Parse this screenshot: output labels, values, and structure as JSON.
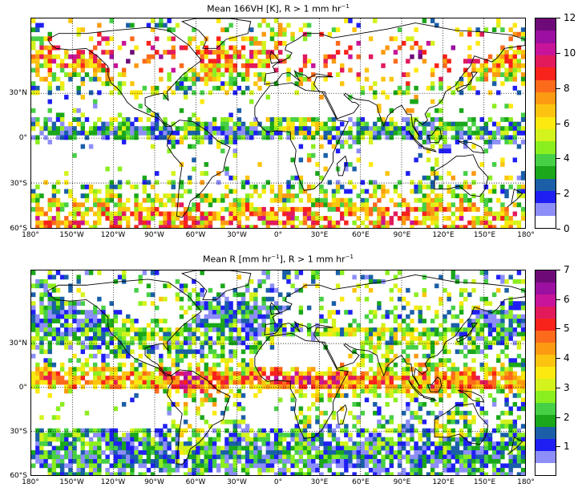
{
  "panels": [
    {
      "id": "top",
      "title": "Mean 166VH [K], R > 1 mm hr",
      "title_sup": "−1",
      "colorbar": {
        "min": 0,
        "max": 12,
        "ticks": [
          "0",
          "2",
          "4",
          "6",
          "8",
          "10",
          "12"
        ],
        "colors": [
          "#ffffff",
          "#8e8ef8",
          "#1f1ff4",
          "#1a5fa8",
          "#1aa71a",
          "#46d046",
          "#8bee1f",
          "#d4f21c",
          "#fbe90f",
          "#fcc410",
          "#fc9a12",
          "#fc6a1b",
          "#f8231a",
          "#e21a5b",
          "#c8149a",
          "#9b10a0",
          "#6e0a78"
        ]
      }
    },
    {
      "id": "bottom",
      "title": "Mean R [mm hr",
      "title_mid": "], R > 1 mm hr",
      "title_sup": "−1",
      "colorbar": {
        "min": 0,
        "max": 7,
        "ticks": [
          "1",
          "2",
          "3",
          "4",
          "5",
          "6",
          "7"
        ],
        "colors": [
          "#ffffff",
          "#8e8ef8",
          "#1f1ff4",
          "#1a5fa8",
          "#1aa71a",
          "#46d046",
          "#8bee1f",
          "#d4f21c",
          "#fbe90f",
          "#fcc410",
          "#fc9a12",
          "#fc6a1b",
          "#f8231a",
          "#e21a5b",
          "#c8149a",
          "#9b10a0",
          "#6e0a78"
        ]
      }
    }
  ],
  "axes": {
    "lat_labels": [
      "30°N",
      "0°",
      "30°S",
      "60°S"
    ],
    "lon_labels": [
      "180°",
      "150°W",
      "120°W",
      "90°W",
      "60°W",
      "30°W",
      "0°",
      "30°E",
      "60°E",
      "90°E",
      "120°E",
      "150°E",
      "180°"
    ]
  }
}
